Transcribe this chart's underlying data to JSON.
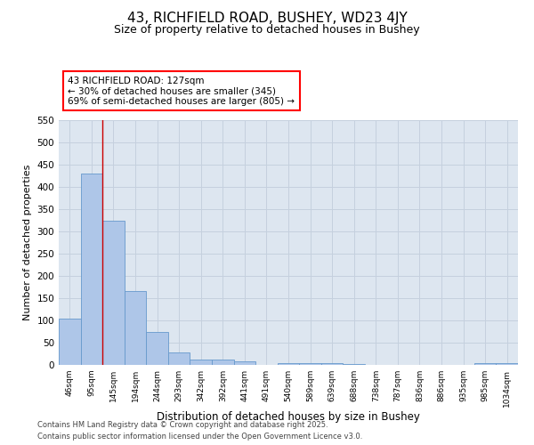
{
  "title1": "43, RICHFIELD ROAD, BUSHEY, WD23 4JY",
  "title2": "Size of property relative to detached houses in Bushey",
  "xlabel": "Distribution of detached houses by size in Bushey",
  "ylabel": "Number of detached properties",
  "categories": [
    "46sqm",
    "95sqm",
    "145sqm",
    "194sqm",
    "244sqm",
    "293sqm",
    "342sqm",
    "392sqm",
    "441sqm",
    "491sqm",
    "540sqm",
    "589sqm",
    "639sqm",
    "688sqm",
    "738sqm",
    "787sqm",
    "836sqm",
    "886sqm",
    "935sqm",
    "985sqm",
    "1034sqm"
  ],
  "values": [
    105,
    430,
    325,
    167,
    75,
    28,
    13,
    13,
    9,
    1,
    5,
    5,
    5,
    3,
    0,
    0,
    0,
    0,
    0,
    4,
    4
  ],
  "bar_color": "#aec6e8",
  "bar_edge_color": "#6699cc",
  "red_line_bar_index": 1,
  "annotation_title": "43 RICHFIELD ROAD: 127sqm",
  "annotation_line1": "← 30% of detached houses are smaller (345)",
  "annotation_line2": "69% of semi-detached houses are larger (805) →",
  "ylim": [
    0,
    550
  ],
  "yticks": [
    0,
    50,
    100,
    150,
    200,
    250,
    300,
    350,
    400,
    450,
    500,
    550
  ],
  "footer1": "Contains HM Land Registry data © Crown copyright and database right 2025.",
  "footer2": "Contains public sector information licensed under the Open Government Licence v3.0.",
  "bg_color": "#dde6f0",
  "grid_color": "#c5d0de"
}
